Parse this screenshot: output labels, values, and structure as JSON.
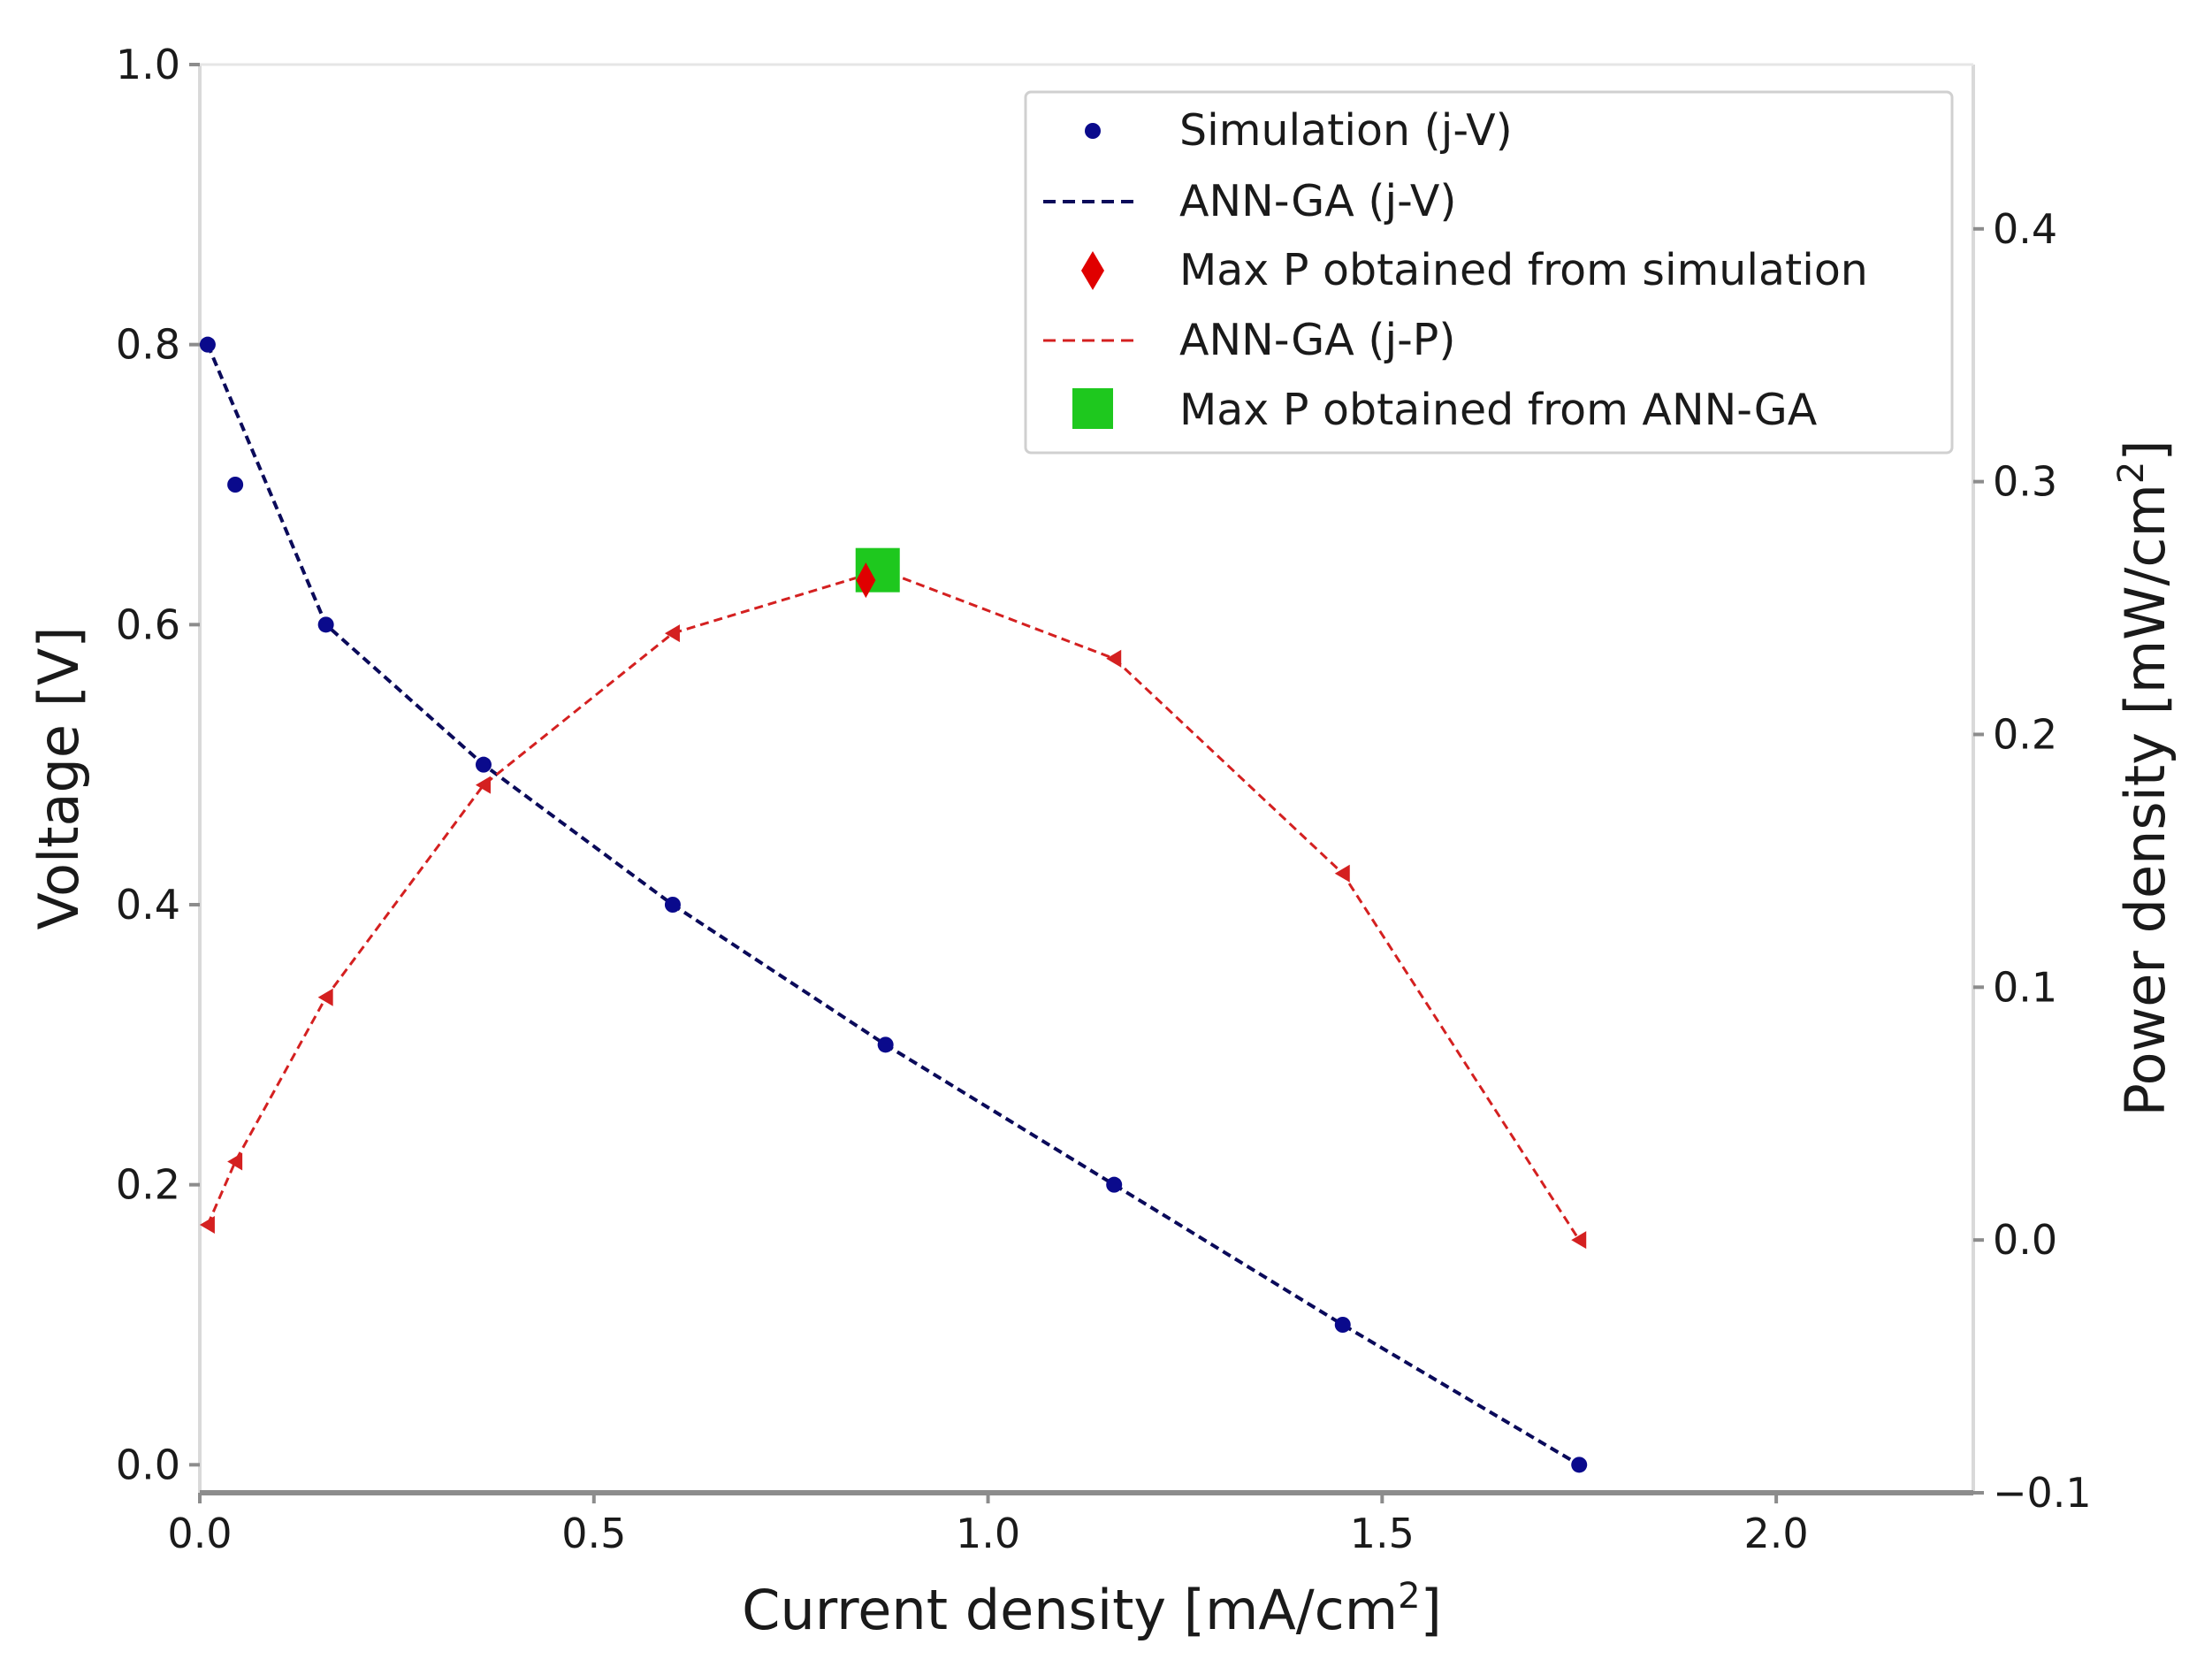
{
  "chart_data": {
    "type": "line",
    "title": "",
    "xlabel": "Current density [mA/cm",
    "xlabel_sup": "2",
    "xlabel_end": "]",
    "ylabel": "Voltage [V]",
    "y2label": "Power density [mW/cm",
    "y2label_sup": "2",
    "y2label_end": "]",
    "xlim": [
      0.0,
      2.25
    ],
    "ylim": [
      -0.02,
      1.0
    ],
    "y2lim": [
      -0.1,
      0.465
    ],
    "xticks": [
      0.0,
      0.5,
      1.0,
      1.5,
      2.0
    ],
    "xtick_labels": [
      "0.0",
      "0.5",
      "1.0",
      "1.5",
      "2.0"
    ],
    "yticks": [
      0.0,
      0.2,
      0.4,
      0.6,
      0.8,
      1.0
    ],
    "ytick_labels": [
      "0.0",
      "0.2",
      "0.4",
      "0.6",
      "0.8",
      "1.0"
    ],
    "y2ticks": [
      -0.1,
      0.0,
      0.1,
      0.2,
      0.3,
      0.4
    ],
    "y2tick_labels": [
      "−0.1",
      "0.0",
      "0.1",
      "0.2",
      "0.3",
      "0.4"
    ],
    "grid": false,
    "legend_position": "top-right",
    "series": [
      {
        "name": "Simulation (j-V)",
        "axis": "left",
        "style": "markers",
        "marker": "circle",
        "color": "#0a0a8c",
        "x": [
          0.01,
          0.045,
          0.16,
          0.36,
          0.6,
          0.87,
          1.16,
          1.45,
          1.75
        ],
        "y": [
          0.8,
          0.7,
          0.6,
          0.5,
          0.4,
          0.3,
          0.2,
          0.1,
          0.0
        ]
      },
      {
        "name": "ANN-GA (j-V)",
        "axis": "left",
        "style": "dashed",
        "color": "#0a0a5a",
        "x": [
          0.01,
          0.16,
          0.36,
          0.6,
          0.87,
          1.16,
          1.45,
          1.75
        ],
        "y": [
          0.8,
          0.6,
          0.5,
          0.4,
          0.3,
          0.2,
          0.1,
          0.0
        ]
      },
      {
        "name": "Max P obtained from simulation",
        "axis": "right",
        "style": "markers",
        "marker": "diamond",
        "color": "#e00000",
        "x": [
          0.845
        ],
        "y": [
          0.261
        ]
      },
      {
        "name": "ANN-GA (j-P)",
        "axis": "right",
        "style": "dashed",
        "marker": "triangle",
        "color": "#d42020",
        "x": [
          0.01,
          0.045,
          0.16,
          0.36,
          0.6,
          0.865,
          1.16,
          1.45,
          1.75
        ],
        "y": [
          0.006,
          0.031,
          0.096,
          0.18,
          0.24,
          0.265,
          0.23,
          0.145,
          0.0
        ]
      },
      {
        "name": "Max P obtained from ANN-GA",
        "axis": "right",
        "style": "markers",
        "marker": "square",
        "color": "#1ec81e",
        "x": [
          0.86
        ],
        "y": [
          0.265
        ]
      }
    ]
  }
}
